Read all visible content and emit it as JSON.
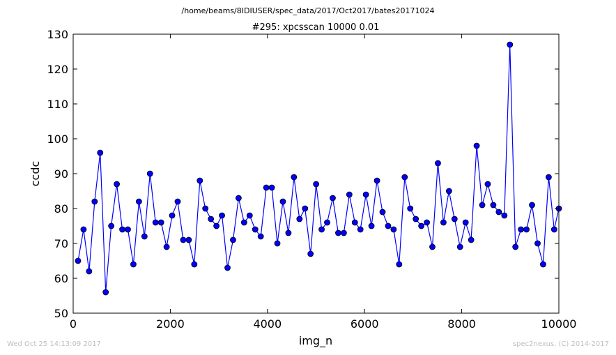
{
  "header": {
    "path": "/home/beams/8IDIUSER/spec_data/2017/Oct2017/bates20171024"
  },
  "footer": {
    "left": "Wed Oct 25 14:13:09 2017",
    "right": "spec2nexus, (C) 2014-2017"
  },
  "colors": {
    "series": "#0000ff",
    "axes": "#000000",
    "footer_text": "#bfbfbf"
  },
  "chart_data": {
    "type": "line",
    "title": "#295: xpcsscan 10000 0.01",
    "xlabel": "img_n",
    "ylabel": "ccdc",
    "xlim": [
      0,
      10000
    ],
    "ylim": [
      50,
      130
    ],
    "xticks": [
      0,
      2000,
      4000,
      6000,
      8000,
      10000
    ],
    "yticks": [
      50,
      60,
      70,
      80,
      90,
      100,
      110,
      120,
      130
    ],
    "grid": false,
    "legend": "none",
    "series": [
      {
        "marker": "circle",
        "x": [
          100,
          214,
          328,
          442,
          556,
          670,
          784,
          898,
          1012,
          1126,
          1240,
          1354,
          1468,
          1582,
          1696,
          1810,
          1924,
          2038,
          2152,
          2266,
          2380,
          2494,
          2608,
          2722,
          2836,
          2950,
          3064,
          3178,
          3292,
          3406,
          3520,
          3634,
          3748,
          3862,
          3976,
          4090,
          4204,
          4318,
          4432,
          4546,
          4660,
          4774,
          4888,
          5002,
          5116,
          5230,
          5344,
          5458,
          5572,
          5686,
          5800,
          5914,
          6028,
          6142,
          6256,
          6370,
          6484,
          6598,
          6712,
          6826,
          6940,
          7054,
          7168,
          7282,
          7396,
          7510,
          7624,
          7738,
          7852,
          7966,
          8080,
          8194,
          8308,
          8422,
          8536,
          8650,
          8764,
          8878,
          8992,
          9106,
          9220,
          9334,
          9448,
          9562,
          9676,
          9790,
          9904,
          10000
        ],
        "y": [
          65,
          74,
          62,
          82,
          96,
          56,
          75,
          87,
          74,
          74,
          64,
          82,
          72,
          90,
          76,
          76,
          69,
          78,
          82,
          71,
          71,
          64,
          88,
          80,
          77,
          75,
          78,
          63,
          71,
          83,
          76,
          78,
          74,
          72,
          86,
          86,
          70,
          82,
          73,
          89,
          77,
          80,
          67,
          87,
          74,
          76,
          83,
          73,
          73,
          84,
          76,
          74,
          84,
          75,
          88,
          79,
          75,
          74,
          64,
          89,
          80,
          77,
          75,
          76,
          69,
          93,
          76,
          85,
          77,
          69,
          76,
          71,
          98,
          81,
          87,
          81,
          79,
          78,
          127,
          69,
          74,
          74,
          81,
          70,
          64,
          89,
          74,
          80
        ]
      }
    ]
  }
}
